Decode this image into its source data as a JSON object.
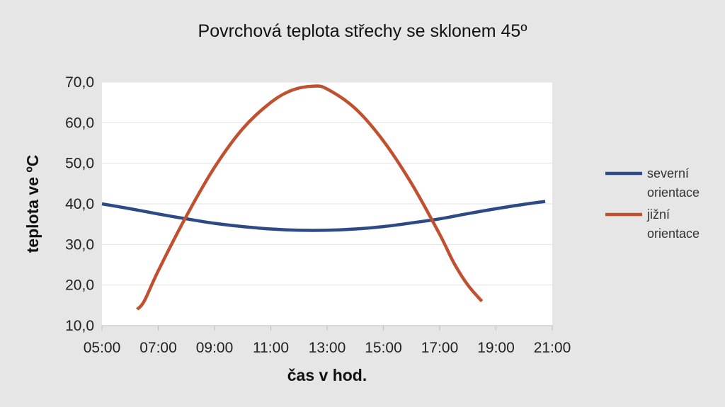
{
  "chart_data": {
    "type": "line",
    "title": "Povrchová teplota střechy se sklonem 45º",
    "xlabel": "čas v hod.",
    "ylabel": "teplota ve ºC",
    "x_ticks": [
      "05:00",
      "07:00",
      "09:00",
      "11:00",
      "13:00",
      "15:00",
      "17:00",
      "19:00",
      "21:00"
    ],
    "y_ticks": [
      "10,0",
      "20,0",
      "30,0",
      "40,0",
      "50,0",
      "60,0",
      "70,0"
    ],
    "xlim": [
      5,
      21
    ],
    "ylim": [
      10,
      70
    ],
    "grid": true,
    "legend_position": "right",
    "series": [
      {
        "name_lines": [
          "severní",
          "orientace"
        ],
        "color": "#2e4a86",
        "x": [
          5,
          6,
          7,
          8,
          9,
          10,
          11,
          12,
          13,
          14,
          15,
          16,
          17,
          18,
          19,
          20,
          20.75
        ],
        "y": [
          40.0,
          38.8,
          37.5,
          36.3,
          35.2,
          34.4,
          33.8,
          33.5,
          33.5,
          33.8,
          34.4,
          35.3,
          36.3,
          37.6,
          38.8,
          39.9,
          40.6
        ]
      },
      {
        "name_lines": [
          "jižní",
          "orientace"
        ],
        "color": "#c0502e",
        "x": [
          6.25,
          6.5,
          7,
          8,
          9,
          10,
          11,
          11.75,
          12.5,
          13,
          14,
          15,
          16,
          17,
          17.5,
          18,
          18.5
        ],
        "y": [
          14.0,
          16.0,
          23.5,
          37.0,
          49.0,
          58.5,
          65.0,
          68.0,
          69.0,
          68.3,
          63.5,
          55.5,
          45.0,
          32.5,
          25.5,
          20.0,
          16.0
        ]
      }
    ]
  }
}
